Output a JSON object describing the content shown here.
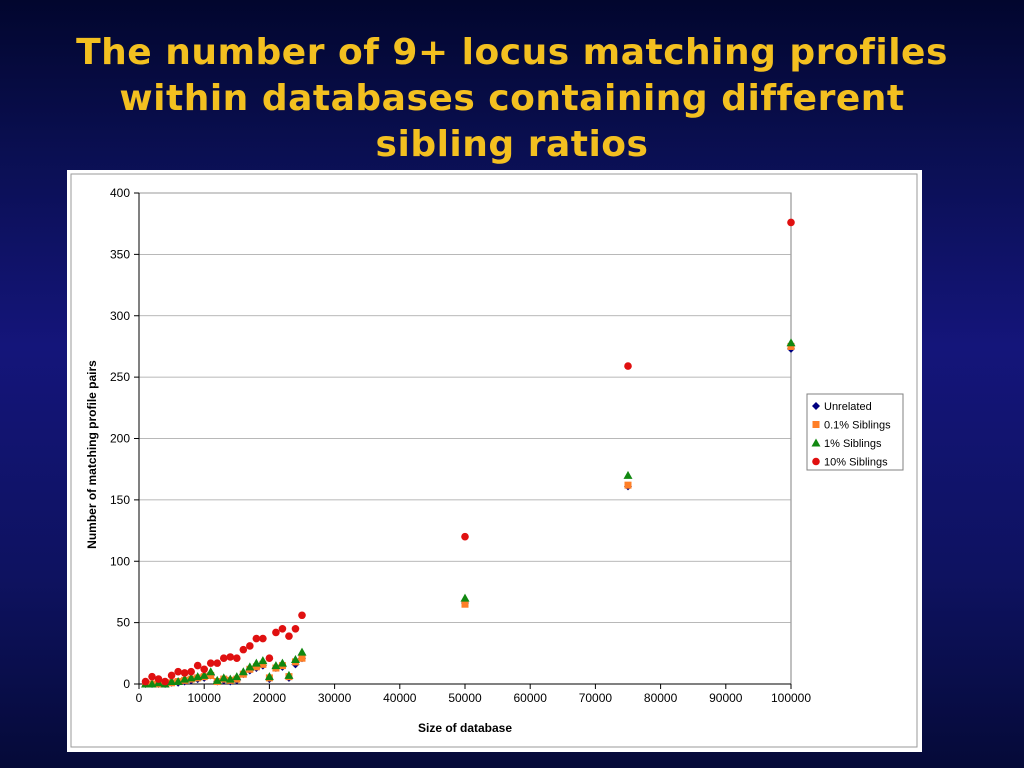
{
  "slide": {
    "title_lines": [
      "The number of 9+ locus matching profiles",
      "within databases containing different",
      "sibling ratios"
    ]
  },
  "chart_data": {
    "type": "scatter",
    "title": "",
    "xlabel": "Size of database",
    "ylabel": "Number of matching profile pairs",
    "xlim": [
      0,
      100000
    ],
    "ylim": [
      0,
      400
    ],
    "xticks": [
      0,
      10000,
      20000,
      30000,
      40000,
      50000,
      60000,
      70000,
      80000,
      90000,
      100000
    ],
    "yticks": [
      0,
      50,
      100,
      150,
      200,
      250,
      300,
      350,
      400
    ],
    "grid": "horizontal",
    "legend_position": "right",
    "series": [
      {
        "name": "Unrelated",
        "marker": "diamond",
        "color": "#000080",
        "points": [
          [
            1000,
            0
          ],
          [
            2000,
            0
          ],
          [
            3000,
            0
          ],
          [
            4000,
            0
          ],
          [
            5000,
            1
          ],
          [
            6000,
            1
          ],
          [
            7000,
            2
          ],
          [
            8000,
            3
          ],
          [
            9000,
            4
          ],
          [
            10000,
            5
          ],
          [
            11000,
            7
          ],
          [
            12000,
            2
          ],
          [
            13000,
            3
          ],
          [
            14000,
            2
          ],
          [
            15000,
            3
          ],
          [
            16000,
            8
          ],
          [
            17000,
            11
          ],
          [
            18000,
            13
          ],
          [
            19000,
            15
          ],
          [
            20000,
            4
          ],
          [
            21000,
            13
          ],
          [
            22000,
            14
          ],
          [
            23000,
            5
          ],
          [
            24000,
            16
          ],
          [
            25000,
            21
          ],
          [
            50000,
            66
          ],
          [
            75000,
            161
          ],
          [
            100000,
            273
          ]
        ]
      },
      {
        "name": "0.1% Siblings",
        "marker": "square",
        "color": "#ff7f27",
        "points": [
          [
            1000,
            0
          ],
          [
            2000,
            0
          ],
          [
            3000,
            0
          ],
          [
            4000,
            0
          ],
          [
            5000,
            1
          ],
          [
            6000,
            2
          ],
          [
            7000,
            3
          ],
          [
            8000,
            4
          ],
          [
            9000,
            5
          ],
          [
            10000,
            6
          ],
          [
            11000,
            7
          ],
          [
            12000,
            2
          ],
          [
            13000,
            4
          ],
          [
            14000,
            3
          ],
          [
            15000,
            4
          ],
          [
            16000,
            8
          ],
          [
            17000,
            12
          ],
          [
            18000,
            14
          ],
          [
            19000,
            16
          ],
          [
            20000,
            5
          ],
          [
            21000,
            13
          ],
          [
            22000,
            15
          ],
          [
            23000,
            6
          ],
          [
            24000,
            18
          ],
          [
            25000,
            21
          ],
          [
            50000,
            65
          ],
          [
            75000,
            162
          ],
          [
            100000,
            275
          ]
        ]
      },
      {
        "name": "1% Siblings",
        "marker": "triangle",
        "color": "#118811",
        "points": [
          [
            1000,
            0
          ],
          [
            2000,
            0
          ],
          [
            3000,
            1
          ],
          [
            4000,
            0
          ],
          [
            5000,
            2
          ],
          [
            6000,
            2
          ],
          [
            7000,
            4
          ],
          [
            8000,
            5
          ],
          [
            9000,
            6
          ],
          [
            10000,
            7
          ],
          [
            11000,
            10
          ],
          [
            12000,
            3
          ],
          [
            13000,
            5
          ],
          [
            14000,
            4
          ],
          [
            15000,
            6
          ],
          [
            16000,
            10
          ],
          [
            17000,
            14
          ],
          [
            18000,
            17
          ],
          [
            19000,
            19
          ],
          [
            20000,
            6
          ],
          [
            21000,
            15
          ],
          [
            22000,
            17
          ],
          [
            23000,
            7
          ],
          [
            24000,
            20
          ],
          [
            25000,
            26
          ],
          [
            50000,
            70
          ],
          [
            75000,
            170
          ],
          [
            100000,
            278
          ]
        ]
      },
      {
        "name": "10% Siblings",
        "marker": "circle",
        "color": "#e01010",
        "points": [
          [
            1000,
            2
          ],
          [
            2000,
            6
          ],
          [
            3000,
            4
          ],
          [
            4000,
            2
          ],
          [
            5000,
            7
          ],
          [
            6000,
            10
          ],
          [
            7000,
            9
          ],
          [
            8000,
            10
          ],
          [
            9000,
            15
          ],
          [
            10000,
            12
          ],
          [
            11000,
            17
          ],
          [
            12000,
            17
          ],
          [
            13000,
            21
          ],
          [
            14000,
            22
          ],
          [
            15000,
            21
          ],
          [
            16000,
            28
          ],
          [
            17000,
            31
          ],
          [
            18000,
            37
          ],
          [
            19000,
            37
          ],
          [
            20000,
            21
          ],
          [
            21000,
            42
          ],
          [
            22000,
            45
          ],
          [
            23000,
            39
          ],
          [
            24000,
            45
          ],
          [
            25000,
            56
          ],
          [
            50000,
            120
          ],
          [
            75000,
            259
          ],
          [
            100000,
            376
          ]
        ]
      }
    ]
  }
}
